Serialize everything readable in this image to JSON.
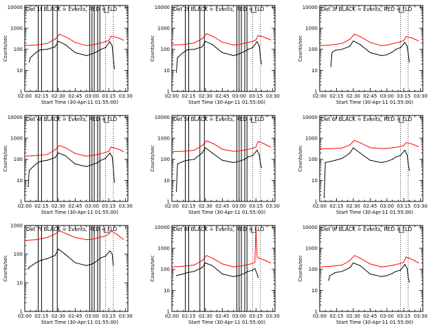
{
  "figure": {
    "time_axis_ticks": [
      "02:00",
      "02:15",
      "02:30",
      "02:45",
      "03:00",
      "03:15",
      "03:30"
    ],
    "xlabel": "Start Time (30-Apr-11 01:55:00)",
    "ylabel": "Counts/sec",
    "ytick_labels": [
      "1",
      "10",
      "100",
      "1000",
      "10000"
    ],
    "legend_text": "BLACK = Events, RED = LLD",
    "colors": {
      "events": "#000000",
      "lld": "#ff0000",
      "background": "#ffffff"
    }
  },
  "chart_data": [
    {
      "type": "line",
      "title": "Det 1f BLACK = Events, RED = LLD",
      "x_range": [
        "02:00",
        "03:32"
      ],
      "y_scale": "log",
      "ylim": [
        1,
        12000
      ],
      "vlines_solid": [
        "02:12",
        "02:15",
        "02:25",
        "02:29",
        "02:58",
        "03:00",
        "03:02",
        "03:05",
        "03:07"
      ],
      "vlines_dotted": [
        "03:12",
        "03:19"
      ],
      "series": [
        {
          "name": "Events",
          "x": [
            "02:04",
            "02:05",
            "02:10",
            "02:14",
            "02:20",
            "02:27",
            "02:30",
            "02:36",
            "02:45",
            "02:55",
            "03:00",
            "03:05",
            "03:08",
            "03:12",
            "03:16",
            "03:18",
            "03:19",
            "03:20"
          ],
          "values": [
            25,
            40,
            70,
            95,
            100,
            130,
            240,
            170,
            70,
            50,
            60,
            80,
            100,
            120,
            230,
            140,
            40,
            12
          ]
        },
        {
          "name": "LLD",
          "x": [
            "02:00",
            "02:10",
            "02:20",
            "02:27",
            "02:31",
            "02:37",
            "02:45",
            "02:55",
            "03:00",
            "03:06",
            "03:12",
            "03:15",
            "03:17",
            "03:22",
            "03:25",
            "03:28"
          ],
          "values": [
            150,
            160,
            190,
            300,
            520,
            380,
            210,
            150,
            160,
            190,
            230,
            260,
            420,
            370,
            320,
            270
          ]
        }
      ]
    },
    {
      "type": "line",
      "title": "Det 2f BLACK = Events, RED = LLD",
      "x_range": [
        "02:00",
        "03:32"
      ],
      "y_scale": "log",
      "ylim": [
        1,
        12000
      ],
      "vlines_solid": [
        "02:12",
        "02:15",
        "02:25",
        "02:29",
        "02:58",
        "03:00",
        "03:02",
        "03:05",
        "03:07"
      ],
      "vlines_dotted": [
        "03:12",
        "03:19"
      ],
      "series": [
        {
          "name": "Events",
          "x": [
            "02:04",
            "02:05",
            "02:10",
            "02:14",
            "02:20",
            "02:27",
            "02:30",
            "02:36",
            "02:45",
            "02:55",
            "03:00",
            "03:05",
            "03:08",
            "03:12",
            "03:16",
            "03:18",
            "03:19",
            "03:20"
          ],
          "values": [
            8,
            40,
            70,
            95,
            100,
            130,
            240,
            170,
            70,
            50,
            60,
            80,
            100,
            120,
            230,
            140,
            40,
            20
          ]
        },
        {
          "name": "LLD",
          "x": [
            "02:00",
            "02:10",
            "02:20",
            "02:27",
            "02:31",
            "02:37",
            "02:45",
            "02:55",
            "03:00",
            "03:06",
            "03:12",
            "03:15",
            "03:17",
            "03:22",
            "03:25",
            "03:28"
          ],
          "values": [
            160,
            170,
            200,
            320,
            550,
            400,
            220,
            160,
            170,
            200,
            240,
            280,
            450,
            380,
            330,
            280
          ]
        }
      ]
    },
    {
      "type": "line",
      "title": "Det 3f BLACK = Events, RED = LLD",
      "x_range": [
        "02:00",
        "03:32"
      ],
      "y_scale": "log",
      "ylim": [
        1,
        12000
      ],
      "vlines_solid": [],
      "vlines_dotted": [
        "03:12",
        "03:19"
      ],
      "series": [
        {
          "name": "Events",
          "x": [
            "02:10",
            "02:11",
            "02:14",
            "02:20",
            "02:27",
            "02:30",
            "02:36",
            "02:45",
            "02:55",
            "03:00",
            "03:05",
            "03:08",
            "03:12",
            "03:16",
            "03:18",
            "03:19",
            "03:20"
          ],
          "values": [
            15,
            70,
            90,
            100,
            140,
            250,
            170,
            70,
            50,
            55,
            75,
            100,
            120,
            210,
            140,
            60,
            25
          ]
        },
        {
          "name": "LLD",
          "x": [
            "02:00",
            "02:10",
            "02:20",
            "02:27",
            "02:31",
            "02:37",
            "02:45",
            "02:55",
            "03:00",
            "03:06",
            "03:12",
            "03:15",
            "03:17",
            "03:22",
            "03:25",
            "03:28"
          ],
          "values": [
            150,
            160,
            190,
            300,
            520,
            380,
            210,
            150,
            160,
            190,
            230,
            260,
            400,
            350,
            300,
            250
          ]
        }
      ]
    },
    {
      "type": "line",
      "title": "Det 4f BLACK = Events, RED = LLD",
      "x_range": [
        "02:00",
        "03:32"
      ],
      "y_scale": "log",
      "ylim": [
        1,
        12000
      ],
      "vlines_solid": [
        "02:12",
        "02:15",
        "02:25",
        "02:29",
        "02:58",
        "03:00",
        "03:02",
        "03:05",
        "03:07"
      ],
      "vlines_dotted": [
        "03:12",
        "03:19"
      ],
      "series": [
        {
          "name": "Events",
          "x": [
            "02:03",
            "02:04",
            "02:10",
            "02:14",
            "02:20",
            "02:27",
            "02:30",
            "02:36",
            "02:45",
            "02:55",
            "03:00",
            "03:05",
            "03:08",
            "03:12",
            "03:16",
            "03:18",
            "03:19",
            "03:20"
          ],
          "values": [
            5,
            30,
            60,
            80,
            90,
            120,
            200,
            150,
            60,
            45,
            55,
            70,
            90,
            110,
            200,
            130,
            40,
            8
          ]
        },
        {
          "name": "LLD",
          "x": [
            "02:00",
            "02:10",
            "02:20",
            "02:27",
            "02:31",
            "02:37",
            "02:45",
            "02:55",
            "03:00",
            "03:06",
            "03:12",
            "03:15",
            "03:17",
            "03:22",
            "03:25",
            "03:28"
          ],
          "values": [
            140,
            150,
            170,
            280,
            450,
            340,
            190,
            140,
            150,
            175,
            210,
            240,
            380,
            320,
            280,
            230
          ]
        }
      ]
    },
    {
      "type": "line",
      "title": "Det 5f BLACK = Events, RED = LLD",
      "x_range": [
        "02:00",
        "03:32"
      ],
      "y_scale": "log",
      "ylim": [
        1,
        12000
      ],
      "vlines_solid": [
        "02:12",
        "02:15",
        "02:25",
        "02:29",
        "02:58",
        "03:00",
        "03:02",
        "03:05",
        "03:07"
      ],
      "vlines_dotted": [
        "03:12",
        "03:19"
      ],
      "series": [
        {
          "name": "Events",
          "x": [
            "02:04",
            "02:05",
            "02:10",
            "02:14",
            "02:20",
            "02:27",
            "02:30",
            "02:36",
            "02:45",
            "02:55",
            "03:00",
            "03:05",
            "03:08",
            "03:12",
            "03:16",
            "03:18",
            "03:19",
            "03:20"
          ],
          "values": [
            3,
            60,
            80,
            90,
            100,
            200,
            350,
            200,
            90,
            70,
            80,
            100,
            130,
            150,
            270,
            160,
            60,
            40
          ]
        },
        {
          "name": "LLD",
          "x": [
            "02:00",
            "02:10",
            "02:20",
            "02:27",
            "02:31",
            "02:37",
            "02:45",
            "02:55",
            "03:00",
            "03:06",
            "03:12",
            "03:15",
            "03:17",
            "03:22",
            "03:25",
            "03:28"
          ],
          "values": [
            230,
            240,
            270,
            450,
            750,
            550,
            300,
            240,
            250,
            280,
            330,
            380,
            700,
            560,
            460,
            380
          ]
        }
      ]
    },
    {
      "type": "line",
      "title": "Det 6f BLACK = Events, RED = LLD",
      "x_range": [
        "02:00",
        "03:32"
      ],
      "y_scale": "log",
      "ylim": [
        1,
        12000
      ],
      "vlines_solid": [],
      "vlines_dotted": [
        "03:12",
        "03:19"
      ],
      "series": [
        {
          "name": "Events",
          "x": [
            "02:04",
            "02:05",
            "02:10",
            "02:14",
            "02:20",
            "02:27",
            "02:30",
            "02:36",
            "02:45",
            "02:55",
            "03:00",
            "03:05",
            "03:08",
            "03:12",
            "03:16",
            "03:18",
            "03:19",
            "03:20"
          ],
          "values": [
            1.5,
            70,
            80,
            90,
            110,
            200,
            350,
            200,
            90,
            70,
            80,
            100,
            130,
            150,
            270,
            160,
            60,
            30
          ]
        },
        {
          "name": "LLD",
          "x": [
            "02:00",
            "02:10",
            "02:20",
            "02:27",
            "02:31",
            "02:37",
            "02:45",
            "02:55",
            "03:00",
            "03:06",
            "03:12",
            "03:15",
            "03:17",
            "03:22",
            "03:25",
            "03:28"
          ],
          "values": [
            320,
            320,
            340,
            480,
            800,
            580,
            360,
            320,
            330,
            360,
            400,
            450,
            620,
            540,
            470,
            400
          ]
        }
      ]
    },
    {
      "type": "line",
      "title": "Det 7f BLACK = Events, RED = LLD",
      "x_range": [
        "02:00",
        "03:32"
      ],
      "y_scale": "log",
      "ylim": [
        1,
        1000
      ],
      "vlines_solid": [
        "02:12",
        "02:15",
        "02:25",
        "02:29",
        "02:58",
        "03:00",
        "03:02",
        "03:05",
        "03:07"
      ],
      "vlines_dotted": [
        "03:12",
        "03:19"
      ],
      "series": [
        {
          "name": "Events",
          "x": [
            "02:03",
            "02:04",
            "02:10",
            "02:14",
            "02:20",
            "02:27",
            "02:30",
            "02:36",
            "02:45",
            "02:55",
            "03:00",
            "03:05",
            "03:08",
            "03:12",
            "03:16",
            "03:18",
            "03:19"
          ],
          "values": [
            30,
            35,
            50,
            60,
            70,
            90,
            150,
            100,
            50,
            40,
            45,
            60,
            75,
            85,
            130,
            100,
            40
          ]
        },
        {
          "name": "LLD",
          "x": [
            "02:00",
            "02:10",
            "02:20",
            "02:27",
            "02:31",
            "02:37",
            "02:45",
            "02:55",
            "03:00",
            "03:06",
            "03:12",
            "03:15",
            "03:17",
            "03:22",
            "03:25",
            "03:28"
          ],
          "values": [
            300,
            320,
            380,
            500,
            650,
            520,
            380,
            320,
            330,
            380,
            430,
            500,
            650,
            500,
            400,
            330
          ]
        }
      ]
    },
    {
      "type": "line",
      "title": "Det 8f BLACK = Events, RED = LLD",
      "x_range": [
        "02:00",
        "03:32"
      ],
      "y_scale": "log",
      "ylim": [
        1,
        12000
      ],
      "vlines_solid": [
        "02:12",
        "02:15",
        "02:25",
        "02:29",
        "02:58",
        "03:00",
        "03:02",
        "03:05",
        "03:07"
      ],
      "vlines_dotted": [
        "03:12",
        "03:19"
      ],
      "series": [
        {
          "name": "Events",
          "x": [
            "02:04",
            "02:10",
            "02:14",
            "02:20",
            "02:27",
            "02:30",
            "02:36",
            "02:45",
            "02:55",
            "03:00",
            "03:05",
            "03:08",
            "03:12",
            "03:14",
            "03:16",
            "03:17"
          ],
          "values": [
            50,
            60,
            70,
            80,
            120,
            200,
            150,
            60,
            45,
            50,
            65,
            80,
            90,
            110,
            60,
            40
          ]
        },
        {
          "name": "LLD",
          "x": [
            "02:00",
            "02:10",
            "02:20",
            "02:27",
            "02:31",
            "02:37",
            "02:45",
            "02:55",
            "03:00",
            "03:06",
            "03:12",
            "03:14",
            "03:15",
            "03:16",
            "03:17",
            "03:22",
            "03:25",
            "03:28"
          ],
          "values": [
            130,
            140,
            160,
            260,
            450,
            320,
            180,
            130,
            140,
            160,
            190,
            220,
            8000,
            400,
            350,
            280,
            240,
            200
          ]
        }
      ]
    },
    {
      "type": "line",
      "title": "Det 9f BLACK = Events, RED = LLD",
      "x_range": [
        "02:00",
        "03:32"
      ],
      "y_scale": "log",
      "ylim": [
        1,
        12000
      ],
      "vlines_solid": [],
      "vlines_dotted": [
        "03:12",
        "03:19"
      ],
      "series": [
        {
          "name": "Events",
          "x": [
            "02:08",
            "02:09",
            "02:14",
            "02:20",
            "02:27",
            "02:30",
            "02:36",
            "02:45",
            "02:55",
            "03:00",
            "03:05",
            "03:08",
            "03:12",
            "03:16",
            "03:18",
            "03:19",
            "03:20"
          ],
          "values": [
            30,
            50,
            70,
            80,
            120,
            200,
            150,
            60,
            45,
            50,
            65,
            80,
            90,
            170,
            110,
            40,
            25
          ]
        },
        {
          "name": "LLD",
          "x": [
            "02:00",
            "02:10",
            "02:20",
            "02:27",
            "02:31",
            "02:37",
            "02:45",
            "02:55",
            "03:00",
            "03:06",
            "03:12",
            "03:15",
            "03:17",
            "03:22",
            "03:25",
            "03:28"
          ],
          "values": [
            130,
            140,
            160,
            260,
            450,
            320,
            180,
            130,
            140,
            160,
            190,
            220,
            380,
            300,
            250,
            200
          ]
        }
      ]
    }
  ]
}
